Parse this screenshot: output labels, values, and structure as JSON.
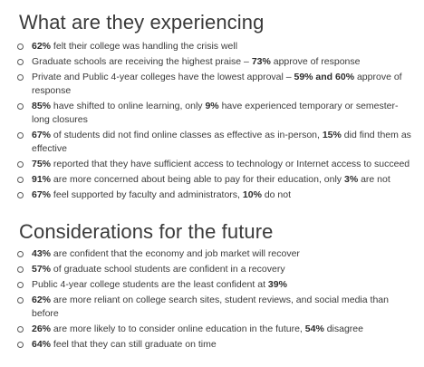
{
  "sections": [
    {
      "heading": "What are they experiencing",
      "items": [
        [
          {
            "t": "62%",
            "b": true
          },
          {
            "t": " felt their college was handling the crisis well"
          }
        ],
        [
          {
            "t": "Graduate schools are receiving the highest praise – "
          },
          {
            "t": "73%",
            "b": true
          },
          {
            "t": " approve of response"
          }
        ],
        [
          {
            "t": "Private and Public 4-year colleges have the lowest approval – "
          },
          {
            "t": "59% and 60%",
            "b": true
          },
          {
            "t": " approve of response"
          }
        ],
        [
          {
            "t": "85%",
            "b": true
          },
          {
            "t": " have shifted to online learning, only "
          },
          {
            "t": "9%",
            "b": true
          },
          {
            "t": " have experienced temporary or semester-long closures"
          }
        ],
        [
          {
            "t": "67%",
            "b": true
          },
          {
            "t": " of students did not find online classes as effective as in-person, "
          },
          {
            "t": "15%",
            "b": true
          },
          {
            "t": " did find them as effective"
          }
        ],
        [
          {
            "t": "75%",
            "b": true
          },
          {
            "t": " reported that they have sufficient access to technology or Internet access to succeed"
          }
        ],
        [
          {
            "t": "91%",
            "b": true
          },
          {
            "t": " are more concerned about being able to pay for their education, only "
          },
          {
            "t": "3%",
            "b": true
          },
          {
            "t": " are not"
          }
        ],
        [
          {
            "t": "67%",
            "b": true
          },
          {
            "t": " feel supported by faculty and administrators, "
          },
          {
            "t": "10%",
            "b": true
          },
          {
            "t": " do not"
          }
        ]
      ]
    },
    {
      "heading": "Considerations for the future",
      "items": [
        [
          {
            "t": "43%",
            "b": true
          },
          {
            "t": " are confident that the economy and job market will recover"
          }
        ],
        [
          {
            "t": "57%",
            "b": true
          },
          {
            "t": " of graduate school students are confident in a recovery"
          }
        ],
        [
          {
            "t": "Public 4-year college students are the least confident at "
          },
          {
            "t": "39%",
            "b": true
          }
        ],
        [
          {
            "t": "62%",
            "b": true
          },
          {
            "t": " are more reliant on college search sites, student reviews, and social media than before"
          }
        ],
        [
          {
            "t": "26%",
            "b": true
          },
          {
            "t": " are more likely to to consider online education in the future, "
          },
          {
            "t": "54%",
            "b": true
          },
          {
            "t": " disagree"
          }
        ],
        [
          {
            "t": "64%",
            "b": true
          },
          {
            "t": " feel that they can still graduate on time"
          }
        ]
      ]
    }
  ]
}
